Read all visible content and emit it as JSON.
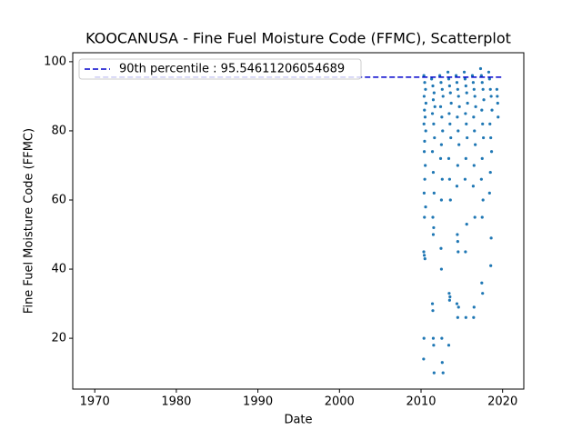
{
  "chart_data": {
    "type": "scatter",
    "title": "KOOCANUSA - Fine Fuel Moisture Code (FFMC), Scatterplot",
    "x_label": "Date",
    "y_label": "Fine Fuel Moisture Code (FFMC)",
    "xlim": [
      1967.3,
      2022.6
    ],
    "ylim": [
      5.3,
      102.6
    ],
    "xticks": [
      1970,
      1980,
      1990,
      2000,
      2010,
      2020
    ],
    "yticks": [
      20,
      40,
      60,
      80,
      100
    ],
    "grid": false,
    "legend": "upper left",
    "series": [
      {
        "type": "scatter",
        "color": "#1f77b4",
        "x": [
          2010.35,
          2010.45,
          2010.55,
          2010.38,
          2010.6,
          2010.42,
          2010.5,
          2010.36,
          2010.58,
          2010.44,
          2010.4,
          2010.52,
          2010.46,
          2010.38,
          2010.56,
          2010.42,
          2010.34,
          2010.4,
          2010.48,
          2010.36,
          2010.32,
          2011.3,
          2011.45,
          2011.6,
          2011.5,
          2011.7,
          2011.4,
          2011.55,
          2011.65,
          2011.4,
          2011.5,
          2011.6,
          2011.45,
          2011.55,
          2011.5,
          2011.4,
          2011.45,
          2011.5,
          2011.55,
          2011.6,
          2012.3,
          2012.45,
          2012.6,
          2012.7,
          2012.4,
          2012.55,
          2012.65,
          2012.5,
          2012.4,
          2012.6,
          2012.5,
          2012.45,
          2012.5,
          2012.55,
          2012.6,
          2012.7,
          2013.3,
          2013.4,
          2013.5,
          2013.6,
          2013.7,
          2013.45,
          2013.55,
          2013.65,
          2013.4,
          2013.5,
          2013.6,
          2013.45,
          2013.55,
          2013.5,
          2013.4,
          2014.3,
          2014.4,
          2014.5,
          2014.6,
          2014.7,
          2014.45,
          2014.55,
          2014.65,
          2014.5,
          2014.4,
          2014.45,
          2014.5,
          2014.55,
          2014.4,
          2014.6,
          2014.5,
          2015.3,
          2015.4,
          2015.5,
          2015.6,
          2015.7,
          2015.45,
          2015.55,
          2015.65,
          2015.5,
          2015.4,
          2015.6,
          2015.45,
          2015.5,
          2016.3,
          2016.4,
          2016.5,
          2016.6,
          2016.7,
          2016.45,
          2016.55,
          2016.65,
          2016.5,
          2016.4,
          2016.6,
          2016.5,
          2016.45,
          2017.3,
          2017.4,
          2017.5,
          2017.6,
          2017.7,
          2017.45,
          2017.55,
          2017.65,
          2017.5,
          2017.4,
          2017.6,
          2017.5,
          2017.45,
          2017.55,
          2018.3,
          2018.4,
          2018.5,
          2018.6,
          2018.7,
          2018.45,
          2018.55,
          2018.65,
          2018.5,
          2018.4,
          2018.6,
          2018.55,
          2019.3,
          2019.35,
          2019.4,
          2019.45
        ],
        "values": [
          96,
          94,
          92,
          90,
          88,
          86,
          84,
          82,
          80,
          77,
          74,
          70,
          66,
          62,
          58,
          55,
          45,
          44,
          43,
          20,
          14,
          95,
          93,
          91,
          89,
          87,
          85,
          82,
          78,
          74,
          68,
          62,
          55,
          52,
          50,
          30,
          28,
          20,
          18,
          10,
          96,
          94,
          92,
          90,
          87,
          84,
          80,
          76,
          72,
          66,
          60,
          46,
          40,
          20,
          13,
          10,
          97,
          95,
          93,
          91,
          88,
          85,
          82,
          78,
          72,
          66,
          60,
          33,
          32,
          31,
          18,
          96,
          94,
          92,
          90,
          87,
          84,
          80,
          76,
          70,
          64,
          50,
          48,
          45,
          30,
          29,
          26,
          97,
          95,
          93,
          91,
          88,
          85,
          82,
          78,
          72,
          66,
          53,
          45,
          26,
          96,
          94,
          92,
          90,
          87,
          84,
          80,
          76,
          70,
          64,
          55,
          29,
          26,
          98,
          96,
          94,
          92,
          89,
          86,
          82,
          78,
          72,
          66,
          60,
          55,
          36,
          33,
          97,
          95,
          92,
          90,
          86,
          82,
          78,
          74,
          68,
          62,
          49,
          41,
          92,
          90,
          88,
          84
        ]
      },
      {
        "type": "line",
        "name": "90th percentile : 95.54611206054689",
        "color": "#0000cc",
        "linestyle": "dashed",
        "x": [
          1970,
          2019.9
        ],
        "values": [
          95.54611206054689,
          95.54611206054689
        ]
      }
    ]
  }
}
